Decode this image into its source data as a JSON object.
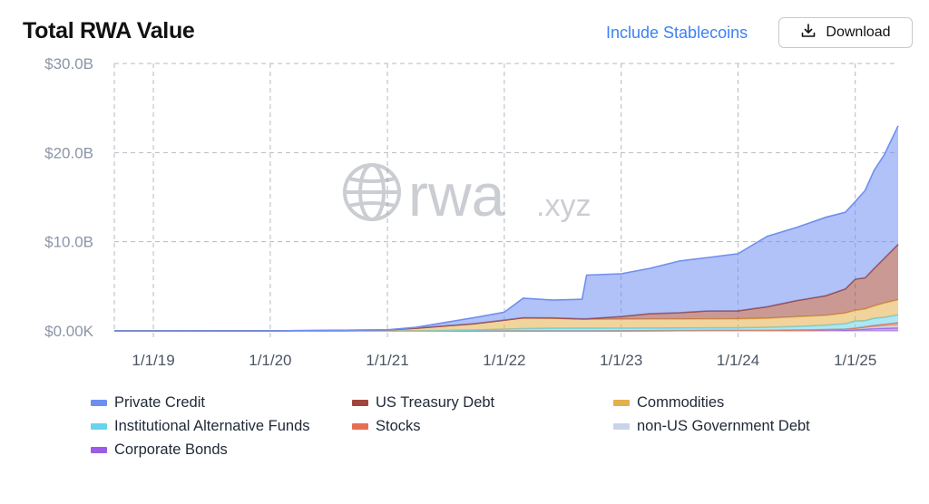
{
  "header": {
    "title": "Total RWA Value",
    "toggle_label": "Include Stablecoins",
    "download_label": "Download"
  },
  "watermark": {
    "brand": "rwa",
    "suffix": ".xyz"
  },
  "colors": {
    "private_credit": "#6f8ff0",
    "us_treasury_debt": "#a0453c",
    "commodities": "#e3b04b",
    "institutional_alternative_funds": "#67d4ea",
    "stocks": "#e76f51",
    "non_us_government_debt": "#c9d3ea",
    "corporate_bonds": "#9b5de5",
    "accent": "#3b82f6"
  },
  "chart_data": {
    "type": "area",
    "stacked": true,
    "title": "Total RWA Value",
    "xlabel": "",
    "ylabel": "",
    "x_ticks": [
      "1/1/19",
      "1/1/20",
      "1/1/21",
      "1/1/22",
      "1/1/23",
      "1/1/24",
      "1/1/25"
    ],
    "y_ticks": [
      "$0.00K",
      "$10.0B",
      "$20.0B",
      "$30.0B"
    ],
    "ylim": [
      0,
      30
    ],
    "y_unit": "billion USD",
    "xlim": [
      "2018-09-01",
      "2025-05-15"
    ],
    "grid": true,
    "legend_position": "bottom",
    "x": [
      "2018-09-01",
      "2019-01-01",
      "2019-07-01",
      "2020-01-01",
      "2020-07-01",
      "2021-01-01",
      "2021-04-01",
      "2021-07-01",
      "2021-10-01",
      "2022-01-01",
      "2022-03-01",
      "2022-06-01",
      "2022-09-01",
      "2022-09-15",
      "2023-01-01",
      "2023-04-01",
      "2023-07-01",
      "2023-10-01",
      "2024-01-01",
      "2024-04-01",
      "2024-07-01",
      "2024-10-01",
      "2024-12-01",
      "2025-01-01",
      "2025-02-01",
      "2025-03-01",
      "2025-04-01",
      "2025-05-15"
    ],
    "series": [
      {
        "name": "Corporate Bonds",
        "values": [
          0,
          0,
          0,
          0,
          0,
          0,
          0,
          0,
          0,
          0,
          0,
          0,
          0,
          0,
          0.01,
          0.02,
          0.03,
          0.04,
          0.05,
          0.06,
          0.07,
          0.08,
          0.1,
          0.15,
          0.2,
          0.25,
          0.3,
          0.35
        ]
      },
      {
        "name": "non-US Government Debt",
        "values": [
          0,
          0,
          0,
          0,
          0,
          0,
          0,
          0,
          0,
          0,
          0,
          0,
          0,
          0,
          0,
          0,
          0,
          0,
          0,
          0,
          0.02,
          0.05,
          0.08,
          0.1,
          0.15,
          0.2,
          0.22,
          0.25
        ]
      },
      {
        "name": "Stocks",
        "values": [
          0,
          0,
          0,
          0,
          0,
          0,
          0,
          0,
          0,
          0,
          0,
          0,
          0,
          0,
          0,
          0,
          0,
          0,
          0,
          0,
          0,
          0.01,
          0.02,
          0.05,
          0.1,
          0.15,
          0.2,
          0.3
        ]
      },
      {
        "name": "Institutional Alternative Funds",
        "values": [
          0,
          0,
          0,
          0,
          0,
          0,
          0,
          0.05,
          0.1,
          0.2,
          0.25,
          0.3,
          0.3,
          0.3,
          0.3,
          0.3,
          0.3,
          0.3,
          0.3,
          0.35,
          0.4,
          0.5,
          0.6,
          0.8,
          0.7,
          0.8,
          0.8,
          0.9
        ]
      },
      {
        "name": "Commodities",
        "values": [
          0,
          0,
          0.01,
          0.01,
          0.05,
          0.1,
          0.3,
          0.5,
          0.7,
          1.0,
          1.2,
          1.1,
          1.0,
          1.0,
          1.0,
          1.0,
          1.0,
          1.0,
          1.0,
          1.0,
          1.1,
          1.1,
          1.2,
          1.2,
          1.3,
          1.4,
          1.6,
          1.7
        ]
      },
      {
        "name": "US Treasury Debt",
        "values": [
          0,
          0,
          0,
          0,
          0,
          0,
          0,
          0,
          0,
          0,
          0.01,
          0.05,
          0.05,
          0.05,
          0.3,
          0.6,
          0.7,
          0.9,
          0.9,
          1.3,
          1.8,
          2.2,
          2.7,
          3.5,
          3.5,
          4.2,
          5.0,
          6.2
        ]
      },
      {
        "name": "Private Credit",
        "values": [
          0,
          0,
          0,
          0,
          0,
          0.02,
          0.1,
          0.4,
          0.7,
          0.9,
          2.2,
          2.0,
          2.2,
          4.9,
          4.8,
          5.1,
          5.8,
          6.0,
          6.4,
          7.9,
          8.2,
          8.8,
          8.6,
          8.7,
          9.8,
          11.0,
          11.6,
          13.3
        ]
      }
    ]
  },
  "legend": [
    {
      "key": "private_credit",
      "label": "Private Credit"
    },
    {
      "key": "us_treasury_debt",
      "label": "US Treasury Debt"
    },
    {
      "key": "commodities",
      "label": "Commodities"
    },
    {
      "key": "institutional_alternative_funds",
      "label": "Institutional Alternative Funds"
    },
    {
      "key": "stocks",
      "label": "Stocks"
    },
    {
      "key": "non_us_government_debt",
      "label": "non-US Government Debt"
    },
    {
      "key": "corporate_bonds",
      "label": "Corporate Bonds"
    }
  ]
}
